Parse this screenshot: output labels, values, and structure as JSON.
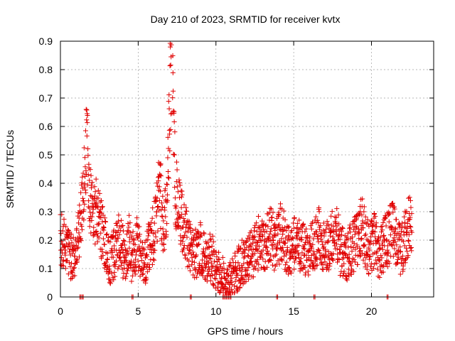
{
  "chart_data": {
    "type": "scatter",
    "title": "Day 210 of 2023, SRMTID for receiver kvtx",
    "xlabel": "GPS time / hours",
    "ylabel": "SRMTID / TECUs",
    "xlim": [
      0,
      24
    ],
    "ylim": [
      0,
      0.9
    ],
    "xticks": [
      0,
      5,
      10,
      15,
      20
    ],
    "xtick_labels": [
      "0",
      "5",
      "10",
      "15",
      "20"
    ],
    "yticks": [
      0,
      0.1,
      0.2,
      0.3,
      0.4,
      0.5,
      0.6,
      0.7,
      0.8,
      0.9
    ],
    "ytick_labels": [
      "0",
      "0.1",
      "0.2",
      "0.3",
      "0.4",
      "0.5",
      "0.6",
      "0.7",
      "0.8",
      "0.9"
    ],
    "grid": true,
    "marker": "+",
    "color": "#e00000",
    "series": [
      {
        "name": "SRMTID",
        "x": [
          0.0,
          0.2,
          0.4,
          0.6,
          0.8,
          1.0,
          1.2,
          1.4,
          1.5,
          1.6,
          1.7,
          1.8,
          1.9,
          2.0,
          2.2,
          2.4,
          2.6,
          2.8,
          3.0,
          3.2,
          3.4,
          3.6,
          3.8,
          4.0,
          4.2,
          4.4,
          4.6,
          4.8,
          5.0,
          5.2,
          5.4,
          5.6,
          5.8,
          6.0,
          6.2,
          6.4,
          6.6,
          6.8,
          6.9,
          7.0,
          7.1,
          7.2,
          7.3,
          7.4,
          7.6,
          7.8,
          8.0,
          8.2,
          8.4,
          8.6,
          8.8,
          9.0,
          9.2,
          9.4,
          9.6,
          9.8,
          10.0,
          10.2,
          10.4,
          10.6,
          10.8,
          11.0,
          11.2,
          11.4,
          11.6,
          11.8,
          12.0,
          12.2,
          12.4,
          12.6,
          12.8,
          13.0,
          13.2,
          13.4,
          13.6,
          13.8,
          14.0,
          14.2,
          14.4,
          14.6,
          14.8,
          15.0,
          15.2,
          15.4,
          15.6,
          15.8,
          16.0,
          16.2,
          16.4,
          16.6,
          16.8,
          17.0,
          17.2,
          17.4,
          17.6,
          17.8,
          18.0,
          18.2,
          18.4,
          18.6,
          18.8,
          19.0,
          19.2,
          19.4,
          19.6,
          19.8,
          20.0,
          20.2,
          20.4,
          20.6,
          20.8,
          21.0,
          21.2,
          21.4,
          21.6,
          21.8,
          22.0,
          22.2,
          22.4,
          22.6
        ],
        "y": [
          0.22,
          0.2,
          0.18,
          0.15,
          0.14,
          0.17,
          0.22,
          0.3,
          0.38,
          0.47,
          0.6,
          0.4,
          0.35,
          0.3,
          0.28,
          0.32,
          0.25,
          0.2,
          0.15,
          0.13,
          0.14,
          0.18,
          0.2,
          0.16,
          0.15,
          0.2,
          0.13,
          0.17,
          0.19,
          0.14,
          0.1,
          0.16,
          0.2,
          0.22,
          0.3,
          0.38,
          0.25,
          0.32,
          0.45,
          0.6,
          0.78,
          0.85,
          0.55,
          0.38,
          0.3,
          0.28,
          0.22,
          0.2,
          0.18,
          0.16,
          0.15,
          0.17,
          0.14,
          0.12,
          0.15,
          0.13,
          0.1,
          0.08,
          0.07,
          0.05,
          0.04,
          0.06,
          0.08,
          0.1,
          0.12,
          0.13,
          0.12,
          0.14,
          0.16,
          0.18,
          0.2,
          0.17,
          0.19,
          0.21,
          0.22,
          0.18,
          0.2,
          0.24,
          0.2,
          0.17,
          0.16,
          0.18,
          0.2,
          0.19,
          0.17,
          0.15,
          0.16,
          0.18,
          0.2,
          0.22,
          0.19,
          0.17,
          0.18,
          0.2,
          0.21,
          0.22,
          0.16,
          0.15,
          0.14,
          0.16,
          0.18,
          0.2,
          0.22,
          0.25,
          0.2,
          0.17,
          0.18,
          0.2,
          0.15,
          0.16,
          0.18,
          0.2,
          0.22,
          0.25,
          0.2,
          0.17,
          0.18,
          0.22,
          0.25,
          0.27
        ],
        "spread": 0.06
      }
    ],
    "zero_markers_x": [
      1.25,
      1.4,
      4.6,
      8.35,
      10.45,
      10.6,
      10.75,
      10.9,
      13.9,
      16.3,
      21.0
    ]
  }
}
